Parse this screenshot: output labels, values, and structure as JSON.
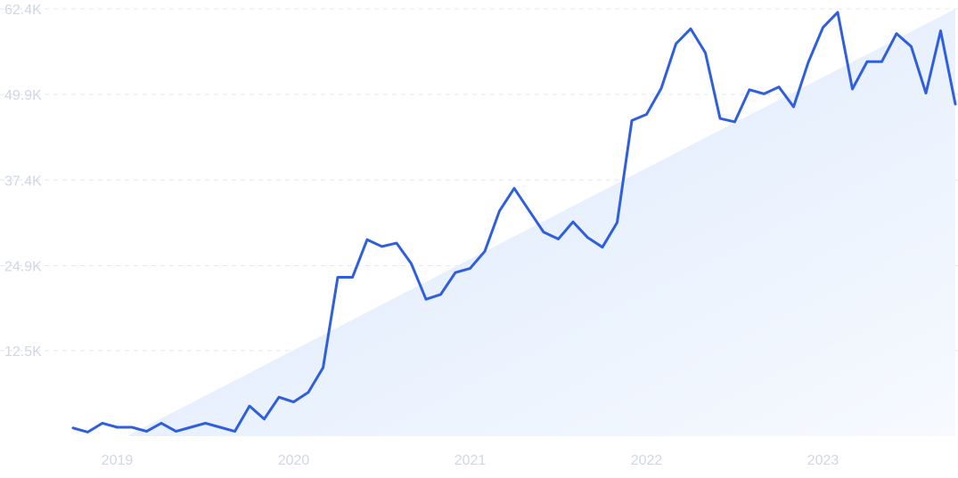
{
  "chart_data": {
    "type": "line",
    "title": "",
    "xlabel": "",
    "ylabel": "",
    "ylim": [
      0,
      62400
    ],
    "y_ticks": [
      "62.4K",
      "49.9K",
      "37.4K",
      "24.9K",
      "12.5K"
    ],
    "y_tick_values": [
      62400,
      49900,
      37400,
      24900,
      12500
    ],
    "x_ticks": [
      "2019",
      "2020",
      "2021",
      "2022",
      "2023"
    ],
    "x_tick_values": [
      "2019-01",
      "2020-01",
      "2021-01",
      "2022-01",
      "2023-01"
    ],
    "grid": true,
    "trend_fill": "linear trend area",
    "colors": {
      "line": "#2f5fde",
      "trend_top": "#dce9fb",
      "trend_bottom": "#f4f8fe",
      "grid": "#e3e8f1",
      "tick_text": "#cfd6e6"
    },
    "x": [
      "2018-10",
      "2018-11",
      "2018-12",
      "2019-01",
      "2019-02",
      "2019-03",
      "2019-04",
      "2019-05",
      "2019-06",
      "2019-07",
      "2019-08",
      "2019-09",
      "2019-10",
      "2019-11",
      "2019-12",
      "2020-01",
      "2020-02",
      "2020-03",
      "2020-04",
      "2020-05",
      "2020-06",
      "2020-07",
      "2020-08",
      "2020-09",
      "2020-10",
      "2020-11",
      "2020-12",
      "2021-01",
      "2021-02",
      "2021-03",
      "2021-04",
      "2021-05",
      "2021-06",
      "2021-07",
      "2021-08",
      "2021-09",
      "2021-10",
      "2021-11",
      "2021-12",
      "2022-01",
      "2022-02",
      "2022-03",
      "2022-04",
      "2022-05",
      "2022-06",
      "2022-07",
      "2022-08",
      "2022-09",
      "2022-10",
      "2022-11",
      "2022-12",
      "2023-01",
      "2023-02",
      "2023-03",
      "2023-04",
      "2023-05",
      "2023-06",
      "2023-07",
      "2023-08",
      "2023-09",
      "2023-10"
    ],
    "series": [
      {
        "values": [
          1200,
          600,
          1900,
          1300,
          1300,
          700,
          1900,
          700,
          1300,
          1900,
          1300,
          700,
          4400,
          2500,
          5700,
          5000,
          6400,
          10000,
          23200,
          23200,
          28700,
          27700,
          28200,
          25200,
          20000,
          20700,
          23900,
          24500,
          27000,
          32900,
          36200,
          33000,
          29800,
          28800,
          31300,
          29000,
          27600,
          31200,
          46100,
          47000,
          50800,
          57300,
          59500,
          56000,
          46400,
          45900,
          50600,
          50000,
          51000,
          48100,
          54600,
          59700,
          61900,
          50700,
          54700,
          54700,
          58800,
          56900,
          50100,
          59200,
          48500
        ]
      }
    ]
  }
}
